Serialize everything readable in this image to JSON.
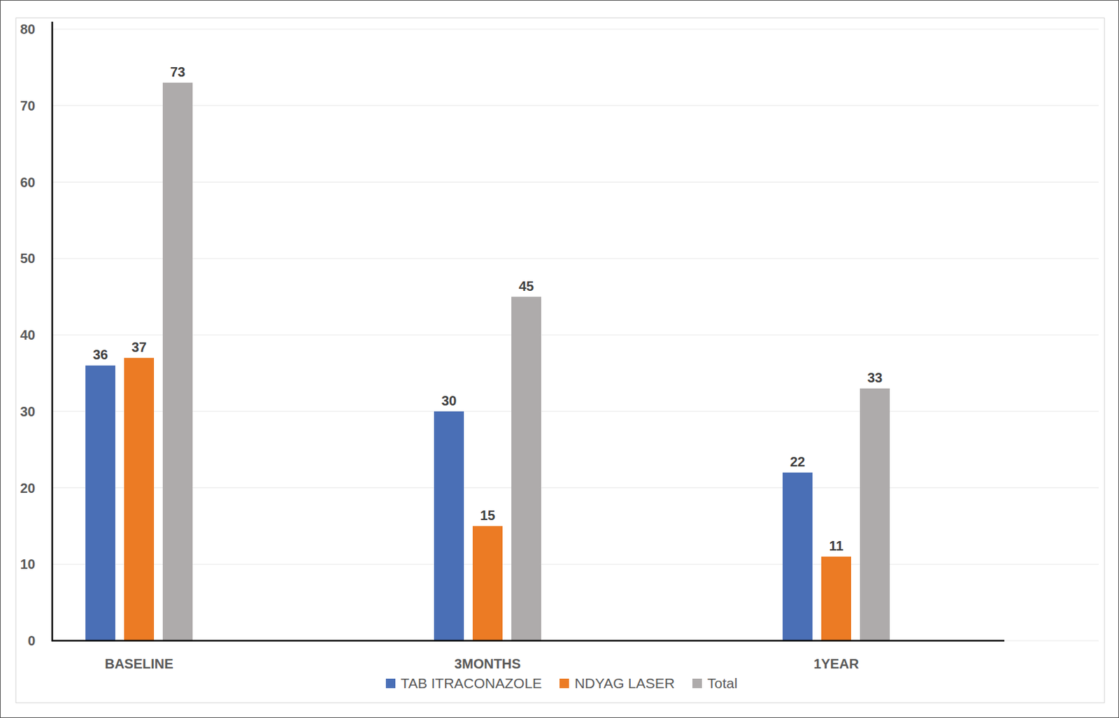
{
  "chart_data": {
    "type": "bar",
    "categories": [
      "BASELINE",
      "3MONTHS",
      "1YEAR"
    ],
    "series": [
      {
        "name": "TAB ITRACONAZOLE",
        "color": "#4a6fb6",
        "values": [
          36,
          30,
          22
        ]
      },
      {
        "name": "NDYAG LASER",
        "color": "#ec7b24",
        "values": [
          37,
          15,
          11
        ]
      },
      {
        "name": "Total",
        "color": "#aeabab",
        "values": [
          73,
          45,
          33
        ]
      }
    ],
    "ylim": [
      0,
      80
    ],
    "yticks": [
      0,
      10,
      20,
      30,
      40,
      50,
      60,
      70,
      80
    ],
    "grid": true,
    "data_labels": true,
    "legend": "bottom"
  }
}
